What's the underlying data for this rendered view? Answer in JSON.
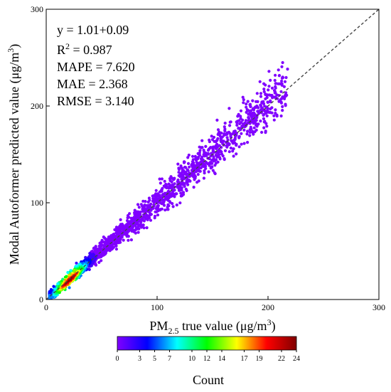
{
  "chart_data": {
    "type": "scatter",
    "subtype": "density-scatter",
    "xlabel": "PM",
    "xlabel_sub": "2.5",
    "xlabel_rest": " true value (μg/m",
    "xlabel_sup": "3",
    "xlabel_close": ")",
    "ylabel": "Modal Autoformer predicted value (μg/m",
    "ylabel_sup": "3",
    "ylabel_close": ")",
    "xlim": [
      0,
      300
    ],
    "ylim": [
      0,
      300
    ],
    "x_ticks": [
      0,
      100,
      200,
      300
    ],
    "y_ticks": [
      0,
      100,
      200,
      300
    ],
    "grid": false,
    "reference_line": {
      "style": "dashed",
      "from": [
        0,
        0
      ],
      "to": [
        300,
        300
      ]
    },
    "fit_line": {
      "slope": 1.01,
      "intercept": 0.09
    },
    "annotations": {
      "equation": "y = 1.01+0.09",
      "r2_label": "R",
      "r2_sup": "2",
      "r2_value": " = 0.987",
      "mape": "MAPE = 7.620",
      "mae": "MAE = 2.368",
      "rmse": "RMSE = 3.140"
    },
    "colorbar": {
      "label": "Count",
      "ticks": [
        "0",
        "3",
        "5",
        "7",
        "10",
        "12",
        "14",
        "17",
        "19",
        "22",
        "24"
      ],
      "min": 0,
      "max": 24,
      "colors": [
        "#8000ff",
        "#4000ff",
        "#0000ff",
        "#0080ff",
        "#00ffff",
        "#00ff80",
        "#00ff00",
        "#80ff00",
        "#ffff00",
        "#ff8000",
        "#ff0000",
        "#c00000",
        "#800000"
      ]
    },
    "density_core": {
      "x_range": [
        5,
        60
      ],
      "description_color_scale": "count"
    }
  }
}
